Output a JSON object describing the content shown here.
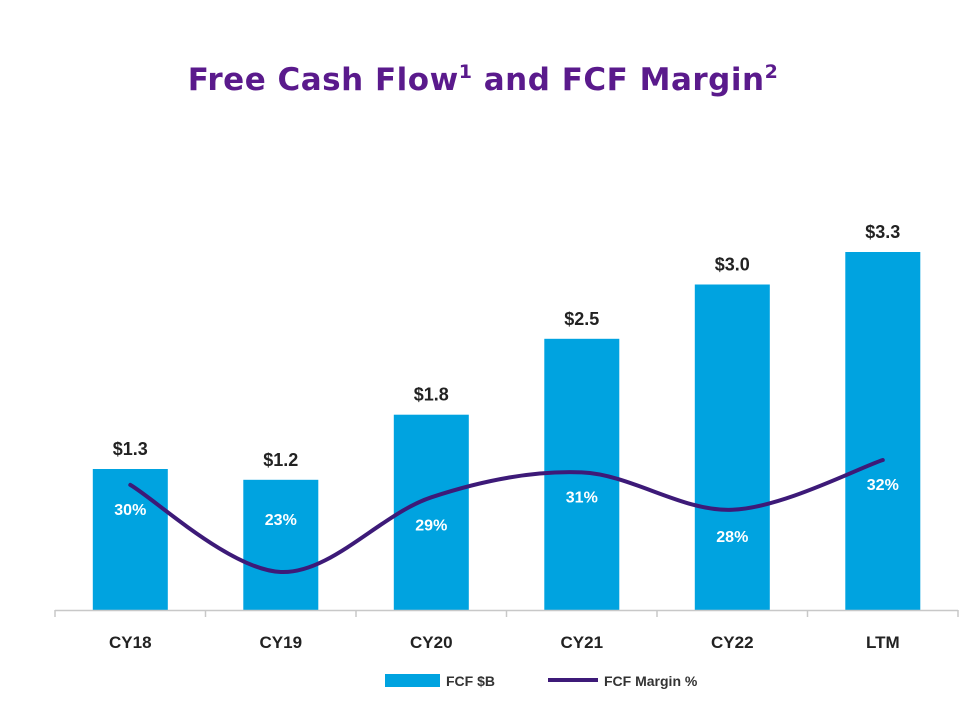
{
  "chart_data": {
    "type": "bar",
    "title": "Free Cash Flow",
    "title_sup1": "1",
    "title_mid": " and FCF Margin",
    "title_sup2": "2",
    "categories": [
      "CY18",
      "CY19",
      "CY20",
      "CY21",
      "CY22",
      "LTM"
    ],
    "series": [
      {
        "name": "FCF $B",
        "type": "bar",
        "values": [
          1.3,
          1.2,
          1.8,
          2.5,
          3.0,
          3.3
        ],
        "labels": [
          "$1.3",
          "$1.2",
          "$1.8",
          "$2.5",
          "$3.0",
          "$3.3"
        ],
        "color": "#00a3e0"
      },
      {
        "name": "FCF Margin %",
        "type": "line",
        "values": [
          30,
          23,
          29,
          31,
          28,
          32
        ],
        "labels": [
          "30%",
          "23%",
          "29%",
          "31%",
          "28%",
          "32%"
        ],
        "color": "#3d1a78"
      }
    ],
    "ylim": [
      0,
      3.3
    ],
    "margin_ylim": [
      20,
      35
    ],
    "xlabel": "",
    "ylabel": "",
    "grid": false,
    "legend": "bottom-center"
  },
  "colors": {
    "title": "#5a1a8c",
    "axis": "#c8c8c8"
  }
}
